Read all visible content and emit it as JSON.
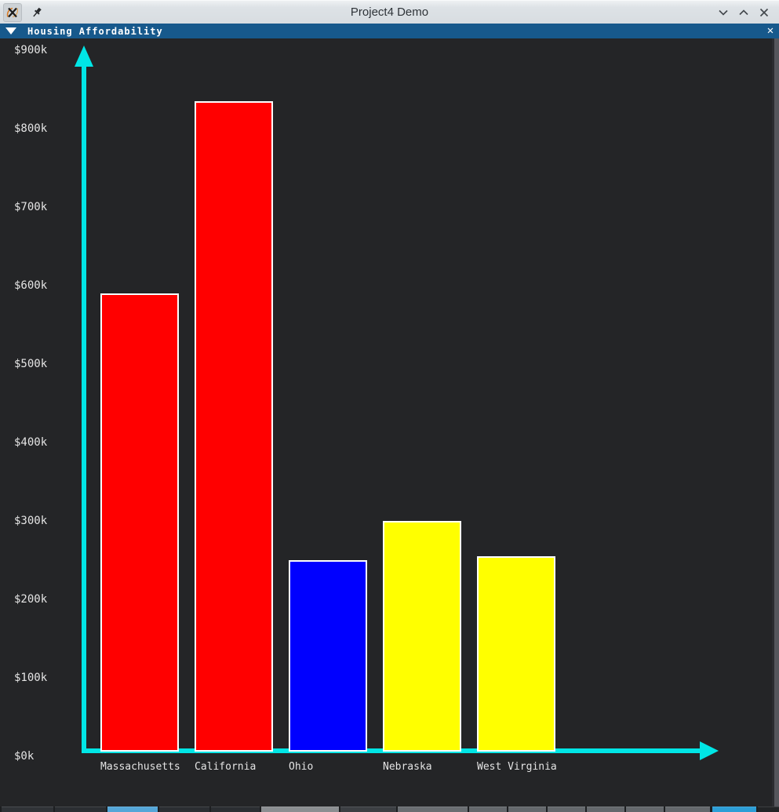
{
  "titlebar": {
    "title": "Project4 Demo"
  },
  "chart_window": {
    "title": "Housing Affordability",
    "close_glyph": "✕"
  },
  "chart_data": {
    "type": "bar",
    "title": "Housing Affordability",
    "categories": [
      "Massachusetts",
      "California",
      "Ohio",
      "Nebraska",
      "West Virginia"
    ],
    "values": [
      590,
      835,
      250,
      300,
      255
    ],
    "values_unit": "$k (thousand dollars)",
    "bar_colors": [
      "#ff0000",
      "#ff0000",
      "#0000ff",
      "#ffff00",
      "#ffff00"
    ],
    "bar_border_color": "#ffffff",
    "xlabel": "",
    "ylabel": "",
    "ylim": [
      0,
      900
    ],
    "yticks": {
      "values": [
        0,
        100,
        200,
        300,
        400,
        500,
        600,
        700,
        800,
        900
      ],
      "labels": [
        "$0k",
        "$100k",
        "$200k",
        "$300k",
        "$400k",
        "$500k",
        "$600k",
        "$700k",
        "$800k",
        "$900k"
      ]
    },
    "grid": false,
    "legend": "none",
    "axis_color": "#00e6e6",
    "background_color": "#242527",
    "text_color": "#e4e4e4"
  },
  "taskbar": {
    "segments": [
      {
        "x": 2,
        "w": 66,
        "color": "#303337"
      },
      {
        "x": 70,
        "w": 65,
        "color": "#2b2e32"
      },
      {
        "x": 137,
        "w": 64,
        "color": "#55a6d8"
      },
      {
        "x": 203,
        "w": 64,
        "color": "#2b2e32"
      },
      {
        "x": 269,
        "w": 62,
        "color": "#2b2e32"
      },
      {
        "x": 333,
        "w": 99,
        "color": "#8b8e91"
      },
      {
        "x": 434,
        "w": 71,
        "color": "#3c3f43"
      },
      {
        "x": 507,
        "w": 89,
        "color": "#6a6e72"
      },
      {
        "x": 598,
        "w": 48,
        "color": "#64686c"
      },
      {
        "x": 648,
        "w": 48,
        "color": "#64686c"
      },
      {
        "x": 698,
        "w": 48,
        "color": "#64686c"
      },
      {
        "x": 748,
        "w": 48,
        "color": "#64686c"
      },
      {
        "x": 798,
        "w": 48,
        "color": "#64686c"
      },
      {
        "x": 848,
        "w": 57,
        "color": "#64686c"
      },
      {
        "x": 908,
        "w": 56,
        "color": "#2d9ed6"
      },
      {
        "x": 966,
        "w": 27,
        "color": "#222426"
      }
    ]
  }
}
